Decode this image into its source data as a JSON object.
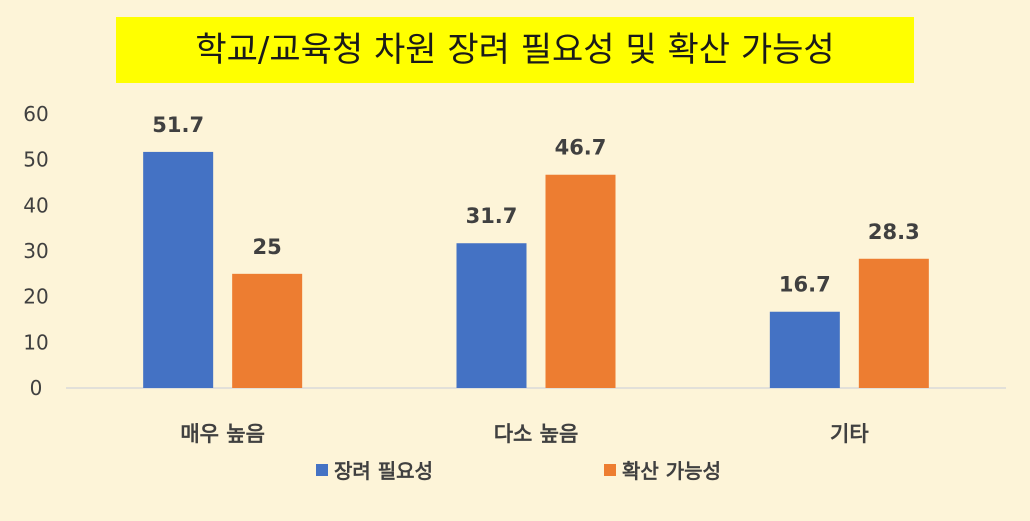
{
  "chart_data": {
    "type": "bar",
    "title": "학교/교육청 차원 장려 필요성 및 확산 가능성",
    "categories": [
      "매우 높음",
      "다소 높음",
      "기타"
    ],
    "series": [
      {
        "name": "장려 필요성",
        "values": [
          51.7,
          31.7,
          16.7
        ],
        "color": "#4472c4"
      },
      {
        "name": "확산 가능성",
        "values": [
          25,
          46.7,
          28.3
        ],
        "color": "#ed7d31"
      }
    ],
    "data_labels": [
      [
        "51.7",
        "31.7",
        "16.7"
      ],
      [
        "25",
        "46.7",
        "28.3"
      ]
    ],
    "yticks": [
      "0",
      "10",
      "20",
      "30",
      "40",
      "50",
      "60"
    ],
    "ylim": [
      0,
      60
    ],
    "xlabel": "",
    "ylabel": "",
    "grid": false,
    "legend_position": "bottom",
    "colors": {
      "background": "#fdf4d8",
      "title_highlight": "#ffff00",
      "axis_line": "#d9d9d9"
    }
  }
}
